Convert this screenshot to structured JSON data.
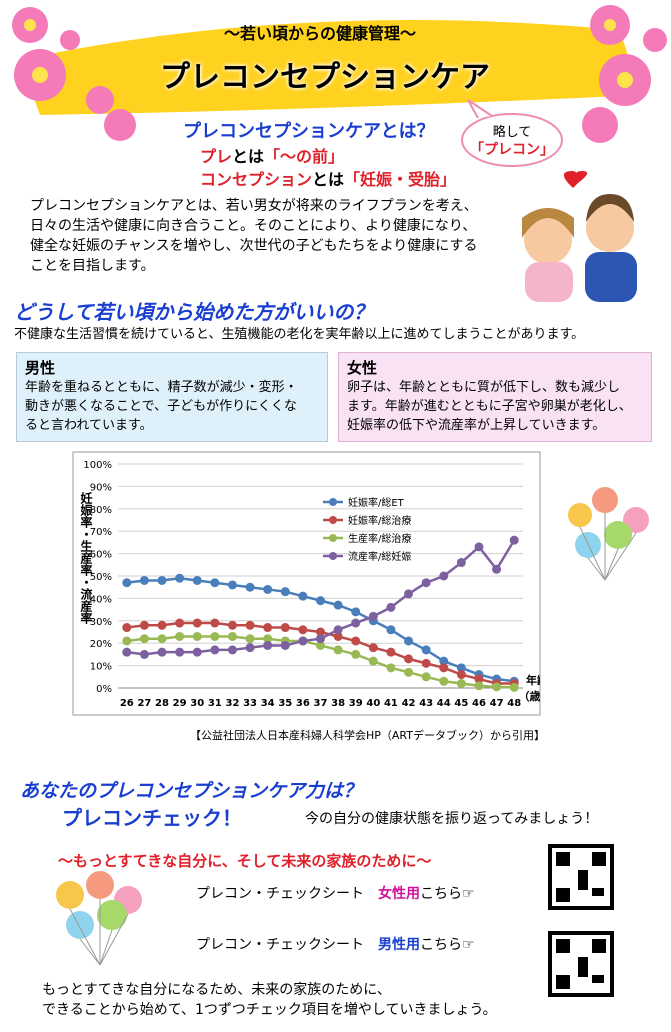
{
  "header": {
    "subtitle": "～若い頃からの健康管理～",
    "title": "プレコンセプションケア"
  },
  "bubble": {
    "line1": "略して",
    "line2": "「プレコン」"
  },
  "about": {
    "heading": "プレコンセプションケアとは？",
    "pre": [
      "プレ",
      "とは",
      "「～の前」"
    ],
    "conception": [
      "コンセプション",
      "とは",
      "「妊娠・受胎」"
    ],
    "body": [
      "プレコンセプションケアとは、若い男女が将来のライフプランを考え、",
      "日々の生活や健康に向き合うこと。そのことにより、より健康になり、",
      "健全な妊娠のチャンスを増やし、次世代の子どもたちをより健康にする",
      "ことを目指します。"
    ]
  },
  "why": {
    "heading": "どうして若い頃から始めた方がいいの？",
    "text": "不健康な生活習慣を続けていると、生殖機能の老化を実年齢以上に進めてしまうことがあります。",
    "male": {
      "title": "男性",
      "lines": [
        "年齢を重ねるとともに、精子数が減少・変形・",
        "動きが悪くなることで、子どもが作りにくくな",
        "ると言われています。"
      ]
    },
    "female": {
      "title": "女性",
      "lines": [
        "卵子は、年齢とともに質が低下し、数も減少し",
        "ます。年齢が進むとともに子宮や卵巣が老化し、",
        "妊娠率の低下や流産率が上昇していきます。"
      ]
    }
  },
  "chart_data": {
    "type": "line",
    "ylabel": "妊娠率・生産率・流産率",
    "xlabel": [
      "年齢",
      "（歳）"
    ],
    "categories": [
      "26",
      "27",
      "28",
      "29",
      "30",
      "31",
      "32",
      "33",
      "34",
      "35",
      "36",
      "37",
      "38",
      "39",
      "40",
      "41",
      "42",
      "43",
      "44",
      "45",
      "46",
      "47",
      "48"
    ],
    "ylim": [
      0,
      100
    ],
    "yticks": [
      {
        "value": 0,
        "label": "0%"
      },
      {
        "value": 10,
        "label": "10%"
      },
      {
        "value": 20,
        "label": "20%"
      },
      {
        "value": 30,
        "label": "30%"
      },
      {
        "value": 40,
        "label": "40%"
      },
      {
        "value": 50,
        "label": "50%"
      },
      {
        "value": 60,
        "label": "60%"
      },
      {
        "value": 70,
        "label": "70%"
      },
      {
        "value": 80,
        "label": "80%"
      },
      {
        "value": 90,
        "label": "90%"
      },
      {
        "value": 100,
        "label": "100%"
      }
    ],
    "grid": true,
    "legend": "center-right",
    "series": [
      {
        "name": "妊娠率/総ET",
        "color": "#4a7ebb",
        "values": [
          47,
          48,
          48,
          49,
          48,
          47,
          46,
          45,
          44,
          43,
          41,
          39,
          37,
          34,
          30,
          26,
          21,
          17,
          12,
          9,
          6,
          4,
          3
        ]
      },
      {
        "name": "妊娠率/総治療",
        "color": "#be4b48",
        "values": [
          27,
          28,
          28,
          29,
          29,
          29,
          28,
          28,
          27,
          27,
          26,
          25,
          23,
          21,
          18,
          16,
          13,
          11,
          9,
          6,
          4,
          2,
          2
        ]
      },
      {
        "name": "生産率/総治療",
        "color": "#98b954",
        "values": [
          21,
          22,
          22,
          23,
          23,
          23,
          23,
          22,
          22,
          21,
          21,
          19,
          17,
          15,
          12,
          9,
          7,
          5,
          3,
          2,
          1,
          0.5,
          0.3
        ]
      },
      {
        "name": "流産率/総妊娠",
        "color": "#7d60a0",
        "values": [
          16,
          15,
          16,
          16,
          16,
          17,
          17,
          18,
          19,
          19,
          21,
          22,
          26,
          29,
          32,
          36,
          42,
          47,
          50,
          56,
          63,
          53,
          66
        ]
      }
    ]
  },
  "citation": "【公益社団法人日本産科婦人科学会HP（ARTデータブック）から引用】",
  "check": {
    "heading": "あなたのプレコンセプションケア力は？",
    "subheading": "プレコンチェック！",
    "note": "今の自分の健康状態を振り返ってみましょう！",
    "slogan": "～もっとすてきな自分に、そして未来の家族のために～",
    "female": [
      "プレコン・チェックシート",
      "女性用",
      "こちら☞"
    ],
    "male": [
      "プレコン・チェックシート",
      "男性用",
      "こちら☞"
    ],
    "closing": [
      "もっとすてきな自分になるため、未来の家族のために、",
      "できることから始めて、1つずつチェック項目を増やしていきましょう。"
    ]
  }
}
